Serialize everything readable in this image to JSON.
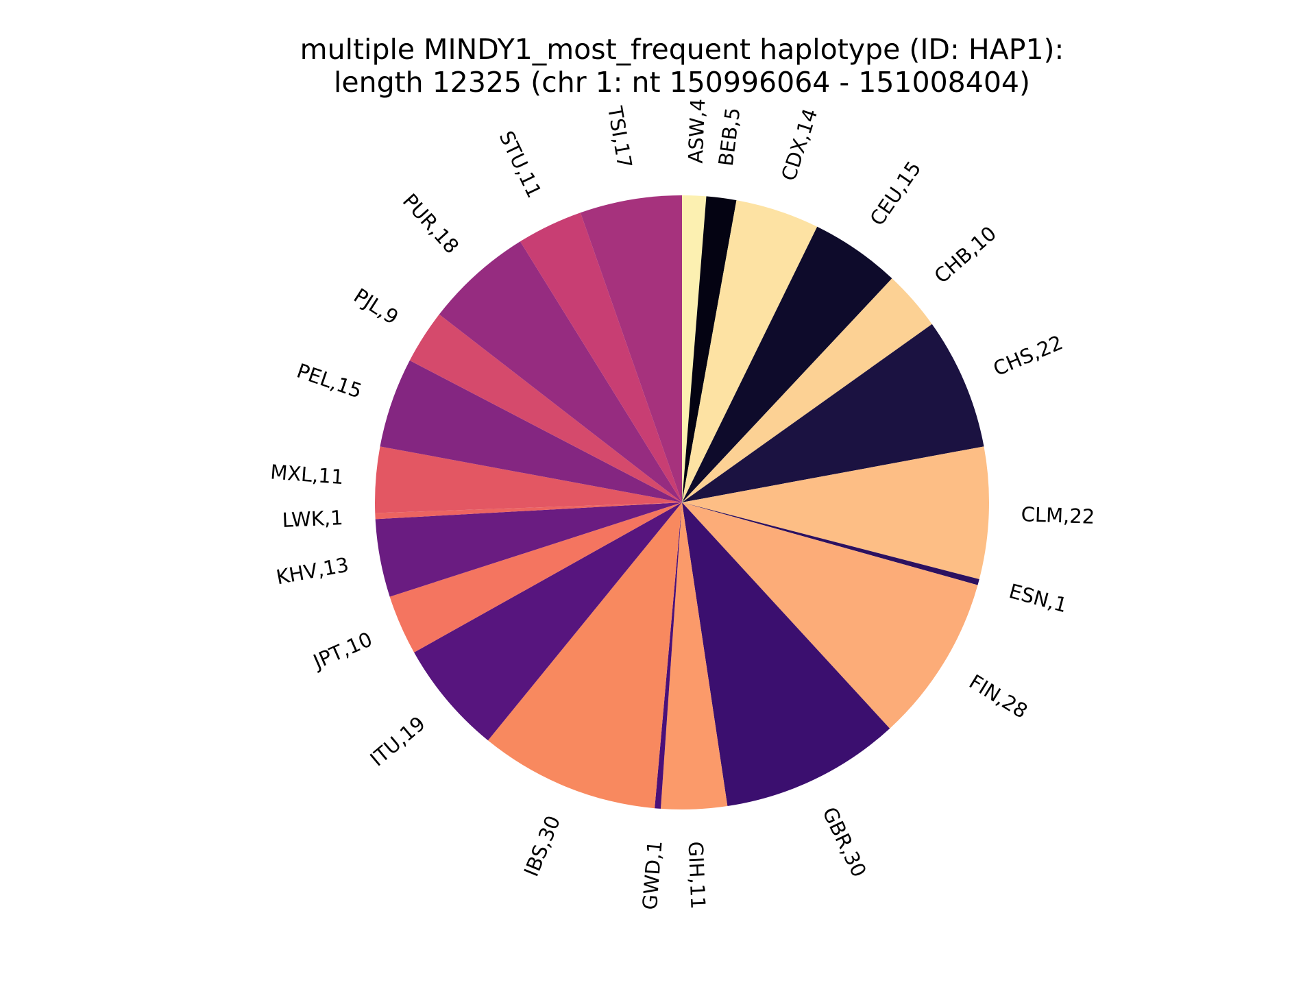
{
  "chart_data": {
    "type": "pie",
    "title": "multiple MINDY1_most_frequent haplotype (ID: HAP1):",
    "subtitle": "length 12325 (chr 1: nt 150996064 - 151008404)",
    "start": "top",
    "direction": "clockwise",
    "slices": [
      {
        "label": "ASW,4",
        "value": 4,
        "color": "#fcf0b1"
      },
      {
        "label": "BEB,5",
        "value": 5,
        "color": "#040312"
      },
      {
        "label": "CDX,14",
        "value": 14,
        "color": "#fde2a3"
      },
      {
        "label": "CEU,15",
        "value": 15,
        "color": "#0e0b2b"
      },
      {
        "label": "CHB,10",
        "value": 10,
        "color": "#fcd194"
      },
      {
        "label": "CHS,22",
        "value": 22,
        "color": "#1b1241"
      },
      {
        "label": "CLM,22",
        "value": 22,
        "color": "#fdbe85"
      },
      {
        "label": "ESN,1",
        "value": 1,
        "color": "#2c1160"
      },
      {
        "label": "FIN,28",
        "value": 28,
        "color": "#fcac78"
      },
      {
        "label": "GBR,30",
        "value": 30,
        "color": "#3b0f6f"
      },
      {
        "label": "GIH,11",
        "value": 11,
        "color": "#fb9a6a"
      },
      {
        "label": "GWD,1",
        "value": 1,
        "color": "#4a1079"
      },
      {
        "label": "IBS,30",
        "value": 30,
        "color": "#f8895f"
      },
      {
        "label": "ITU,19",
        "value": 19,
        "color": "#57157e"
      },
      {
        "label": "JPT,10",
        "value": 10,
        "color": "#f47560"
      },
      {
        "label": "KHV,13",
        "value": 13,
        "color": "#6a1c81"
      },
      {
        "label": "LWK,1",
        "value": 1,
        "color": "#ec6461"
      },
      {
        "label": "MXL,11",
        "value": 11,
        "color": "#e35763"
      },
      {
        "label": "PEL,15",
        "value": 15,
        "color": "#842681"
      },
      {
        "label": "PJL,9",
        "value": 9,
        "color": "#d54a6c"
      },
      {
        "label": "PUR,18",
        "value": 18,
        "color": "#962c80"
      },
      {
        "label": "STU,11",
        "value": 11,
        "color": "#c83e73"
      },
      {
        "label": "TSI,17",
        "value": 17,
        "color": "#a6327d"
      }
    ]
  }
}
